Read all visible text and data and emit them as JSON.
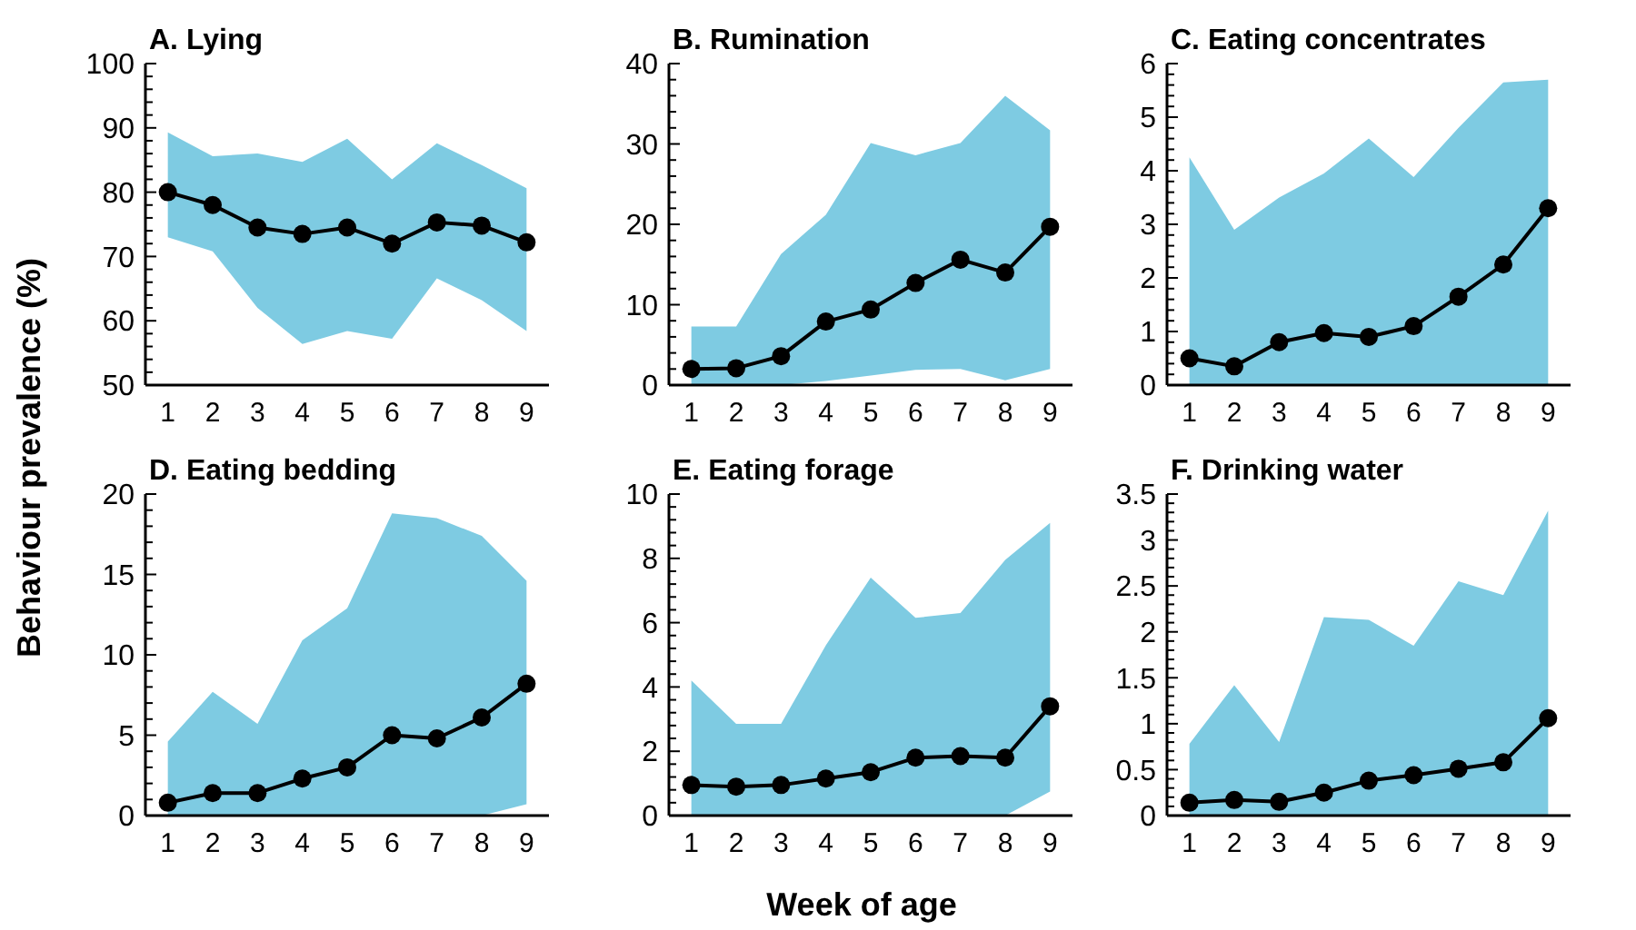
{
  "chart_data": [
    {
      "type": "line",
      "title": "A. Lying",
      "ylabel": "Behaviour prevalence (%)",
      "x": [
        1,
        2,
        3,
        4,
        5,
        6,
        7,
        8,
        9
      ],
      "xlim": [
        0.5,
        9.5
      ],
      "xticks": [
        1,
        2,
        3,
        4,
        5,
        6,
        7,
        8,
        9
      ],
      "ylim": [
        50,
        100
      ],
      "yticks": [
        50,
        {
          "value": 52,
          "label": null
        },
        {
          "value": 54,
          "label": null
        },
        {
          "value": 56,
          "label": null
        },
        {
          "value": 58,
          "label": null
        },
        60,
        {
          "value": 62,
          "label": null
        },
        {
          "value": 64,
          "label": null
        },
        {
          "value": 66,
          "label": null
        },
        {
          "value": 68,
          "label": null
        },
        70,
        {
          "value": 72,
          "label": null
        },
        {
          "value": 74,
          "label": null
        },
        {
          "value": 76,
          "label": null
        },
        {
          "value": 78,
          "label": null
        },
        80,
        {
          "value": 82,
          "label": null
        },
        {
          "value": 84,
          "label": null
        },
        {
          "value": 86,
          "label": null
        },
        {
          "value": 88,
          "label": null
        },
        90,
        {
          "value": 92,
          "label": null
        },
        {
          "value": 94,
          "label": null
        },
        {
          "value": 96,
          "label": null
        },
        {
          "value": 98,
          "label": null
        },
        100
      ],
      "marker": "circle",
      "series": [
        {
          "color": "#000000",
          "values": [
            80,
            78,
            74.5,
            73.5,
            74.5,
            72,
            75.3,
            74.8,
            72.2
          ],
          "lower": [
            73,
            70.8,
            62,
            56.4,
            58.4,
            57.2,
            66.6,
            63.2,
            58.4
          ],
          "upper": [
            89.3,
            85.6,
            86,
            84.7,
            88.3,
            82,
            87.6,
            84.2,
            80.6
          ]
        }
      ]
    },
    {
      "type": "line",
      "title": "B. Rumination",
      "x": [
        1,
        2,
        3,
        4,
        5,
        6,
        7,
        8,
        9
      ],
      "xlim": [
        0.5,
        9.5
      ],
      "xticks": [
        1,
        2,
        3,
        4,
        5,
        6,
        7,
        8,
        9
      ],
      "ylim": [
        0,
        40
      ],
      "yticks": [
        0,
        {
          "value": 2,
          "label": null
        },
        {
          "value": 4,
          "label": null
        },
        {
          "value": 6,
          "label": null
        },
        {
          "value": 8,
          "label": null
        },
        10,
        {
          "value": 12,
          "label": null
        },
        {
          "value": 14,
          "label": null
        },
        {
          "value": 16,
          "label": null
        },
        {
          "value": 18,
          "label": null
        },
        20,
        {
          "value": 22,
          "label": null
        },
        {
          "value": 24,
          "label": null
        },
        {
          "value": 26,
          "label": null
        },
        {
          "value": 28,
          "label": null
        },
        30,
        {
          "value": 32,
          "label": null
        },
        {
          "value": 34,
          "label": null
        },
        {
          "value": 36,
          "label": null
        },
        {
          "value": 38,
          "label": null
        },
        40
      ],
      "marker": "circle",
      "series": [
        {
          "color": "#000000",
          "values": [
            2,
            2.1,
            3.6,
            7.9,
            9.4,
            12.7,
            15.6,
            14,
            19.7
          ],
          "lower": [
            0,
            0,
            0,
            0.5,
            1.2,
            1.9,
            2,
            0.6,
            2
          ],
          "upper": [
            7.3,
            7.3,
            16.3,
            21.2,
            30.1,
            28.6,
            30.1,
            36,
            31.7
          ]
        }
      ]
    },
    {
      "type": "line",
      "title": "C. Eating concentrates",
      "x": [
        1,
        2,
        3,
        4,
        5,
        6,
        7,
        8,
        9
      ],
      "xlim": [
        0.5,
        9.5
      ],
      "xticks": [
        1,
        2,
        3,
        4,
        5,
        6,
        7,
        8,
        9
      ],
      "ylim": [
        0,
        6
      ],
      "yticks": [
        0,
        {
          "value": 0.2,
          "label": null
        },
        {
          "value": 0.4,
          "label": null
        },
        {
          "value": 0.6,
          "label": null
        },
        {
          "value": 0.8,
          "label": null
        },
        1,
        {
          "value": 1.2,
          "label": null
        },
        {
          "value": 1.4,
          "label": null
        },
        {
          "value": 1.6,
          "label": null
        },
        {
          "value": 1.8,
          "label": null
        },
        2,
        {
          "value": 2.2,
          "label": null
        },
        {
          "value": 2.4,
          "label": null
        },
        {
          "value": 2.6,
          "label": null
        },
        {
          "value": 2.8,
          "label": null
        },
        3,
        {
          "value": 3.2,
          "label": null
        },
        {
          "value": 3.4,
          "label": null
        },
        {
          "value": 3.6,
          "label": null
        },
        {
          "value": 3.8,
          "label": null
        },
        4,
        {
          "value": 4.2,
          "label": null
        },
        {
          "value": 4.4,
          "label": null
        },
        {
          "value": 4.6,
          "label": null
        },
        {
          "value": 4.8,
          "label": null
        },
        5,
        {
          "value": 5.2,
          "label": null
        },
        {
          "value": 5.4,
          "label": null
        },
        {
          "value": 5.6,
          "label": null
        },
        {
          "value": 5.8,
          "label": null
        },
        6
      ],
      "marker": "circle",
      "series": [
        {
          "color": "#000000",
          "values": [
            0.5,
            0.35,
            0.8,
            0.97,
            0.9,
            1.1,
            1.65,
            2.25,
            3.3
          ],
          "lower": [
            0,
            0,
            0,
            0,
            0,
            0,
            0,
            0,
            0
          ],
          "upper": [
            4.25,
            2.9,
            3.5,
            3.95,
            4.6,
            3.88,
            4.8,
            5.65,
            5.7
          ]
        }
      ]
    },
    {
      "type": "line",
      "title": "D. Eating bedding",
      "x": [
        1,
        2,
        3,
        4,
        5,
        6,
        7,
        8,
        9
      ],
      "xlim": [
        0.5,
        9.5
      ],
      "xticks": [
        1,
        2,
        3,
        4,
        5,
        6,
        7,
        8,
        9
      ],
      "ylim": [
        0,
        20
      ],
      "yticks": [
        0,
        {
          "value": 1,
          "label": null
        },
        {
          "value": 2,
          "label": null
        },
        {
          "value": 3,
          "label": null
        },
        {
          "value": 4,
          "label": null
        },
        5,
        {
          "value": 6,
          "label": null
        },
        {
          "value": 7,
          "label": null
        },
        {
          "value": 8,
          "label": null
        },
        {
          "value": 9,
          "label": null
        },
        10,
        {
          "value": 11,
          "label": null
        },
        {
          "value": 12,
          "label": null
        },
        {
          "value": 13,
          "label": null
        },
        {
          "value": 14,
          "label": null
        },
        15,
        {
          "value": 16,
          "label": null
        },
        {
          "value": 17,
          "label": null
        },
        {
          "value": 18,
          "label": null
        },
        {
          "value": 19,
          "label": null
        },
        20
      ],
      "marker": "circle",
      "series": [
        {
          "color": "#000000",
          "values": [
            0.8,
            1.4,
            1.4,
            2.3,
            3,
            5,
            4.8,
            6.1,
            8.2
          ],
          "lower": [
            0,
            0,
            0,
            0,
            0,
            0,
            0,
            0,
            0.7
          ],
          "upper": [
            4.6,
            7.7,
            5.7,
            10.9,
            12.9,
            18.8,
            18.5,
            17.4,
            14.6
          ]
        }
      ]
    },
    {
      "type": "line",
      "title": "E. Eating forage",
      "xlabel": "Week of age",
      "x": [
        1,
        2,
        3,
        4,
        5,
        6,
        7,
        8,
        9
      ],
      "xlim": [
        0.5,
        9.5
      ],
      "xticks": [
        1,
        2,
        3,
        4,
        5,
        6,
        7,
        8,
        9
      ],
      "ylim": [
        0,
        10
      ],
      "yticks": [
        0,
        {
          "value": 0.4,
          "label": null
        },
        {
          "value": 0.8,
          "label": null
        },
        {
          "value": 1.2,
          "label": null
        },
        {
          "value": 1.6,
          "label": null
        },
        2,
        {
          "value": 2.4,
          "label": null
        },
        {
          "value": 2.8,
          "label": null
        },
        {
          "value": 3.2,
          "label": null
        },
        {
          "value": 3.6,
          "label": null
        },
        4,
        {
          "value": 4.4,
          "label": null
        },
        {
          "value": 4.8,
          "label": null
        },
        {
          "value": 5.2,
          "label": null
        },
        {
          "value": 5.6,
          "label": null
        },
        6,
        {
          "value": 6.4,
          "label": null
        },
        {
          "value": 6.8,
          "label": null
        },
        {
          "value": 7.2,
          "label": null
        },
        {
          "value": 7.6,
          "label": null
        },
        8,
        {
          "value": 8.4,
          "label": null
        },
        {
          "value": 8.8,
          "label": null
        },
        {
          "value": 9.2,
          "label": null
        },
        {
          "value": 9.6,
          "label": null
        },
        10
      ],
      "marker": "circle",
      "series": [
        {
          "color": "#000000",
          "values": [
            0.95,
            0.9,
            0.95,
            1.15,
            1.35,
            1.8,
            1.85,
            1.8,
            3.4
          ],
          "lower": [
            0,
            0,
            0,
            0,
            0,
            0,
            0,
            0,
            0.75
          ],
          "upper": [
            4.2,
            2.85,
            2.85,
            5.3,
            7.4,
            6.15,
            6.3,
            7.95,
            9.1
          ]
        }
      ]
    },
    {
      "type": "line",
      "title": "F. Drinking water",
      "x": [
        1,
        2,
        3,
        4,
        5,
        6,
        7,
        8,
        9
      ],
      "xlim": [
        0.5,
        9.5
      ],
      "xticks": [
        1,
        2,
        3,
        4,
        5,
        6,
        7,
        8,
        9
      ],
      "ylim": [
        0,
        3.5
      ],
      "yticks": [
        0,
        {
          "value": 0.1,
          "label": null
        },
        {
          "value": 0.2,
          "label": null
        },
        {
          "value": 0.3,
          "label": null
        },
        {
          "value": 0.4,
          "label": null
        },
        0.5,
        {
          "value": 0.6,
          "label": null
        },
        {
          "value": 0.7,
          "label": null
        },
        {
          "value": 0.8,
          "label": null
        },
        {
          "value": 0.9,
          "label": null
        },
        1,
        {
          "value": 1.1,
          "label": null
        },
        {
          "value": 1.2,
          "label": null
        },
        {
          "value": 1.3,
          "label": null
        },
        {
          "value": 1.4,
          "label": null
        },
        1.5,
        {
          "value": 1.6,
          "label": null
        },
        {
          "value": 1.7,
          "label": null
        },
        {
          "value": 1.8,
          "label": null
        },
        {
          "value": 1.9,
          "label": null
        },
        2,
        {
          "value": 2.1,
          "label": null
        },
        {
          "value": 2.2,
          "label": null
        },
        {
          "value": 2.3,
          "label": null
        },
        {
          "value": 2.4,
          "label": null
        },
        2.5,
        {
          "value": 2.6,
          "label": null
        },
        {
          "value": 2.7,
          "label": null
        },
        {
          "value": 2.8,
          "label": null
        },
        {
          "value": 2.9,
          "label": null
        },
        3,
        {
          "value": 3.1,
          "label": null
        },
        {
          "value": 3.2,
          "label": null
        },
        {
          "value": 3.3,
          "label": null
        },
        {
          "value": 3.4,
          "label": null
        },
        3.5
      ],
      "marker": "circle",
      "series": [
        {
          "color": "#000000",
          "values": [
            0.14,
            0.17,
            0.15,
            0.25,
            0.38,
            0.44,
            0.51,
            0.58,
            1.06
          ],
          "lower": [
            0,
            0,
            0,
            0,
            0,
            0,
            0,
            0,
            0
          ],
          "upper": [
            0.78,
            1.42,
            0.8,
            2.16,
            2.13,
            1.85,
            2.55,
            2.4,
            3.32
          ]
        }
      ]
    }
  ]
}
